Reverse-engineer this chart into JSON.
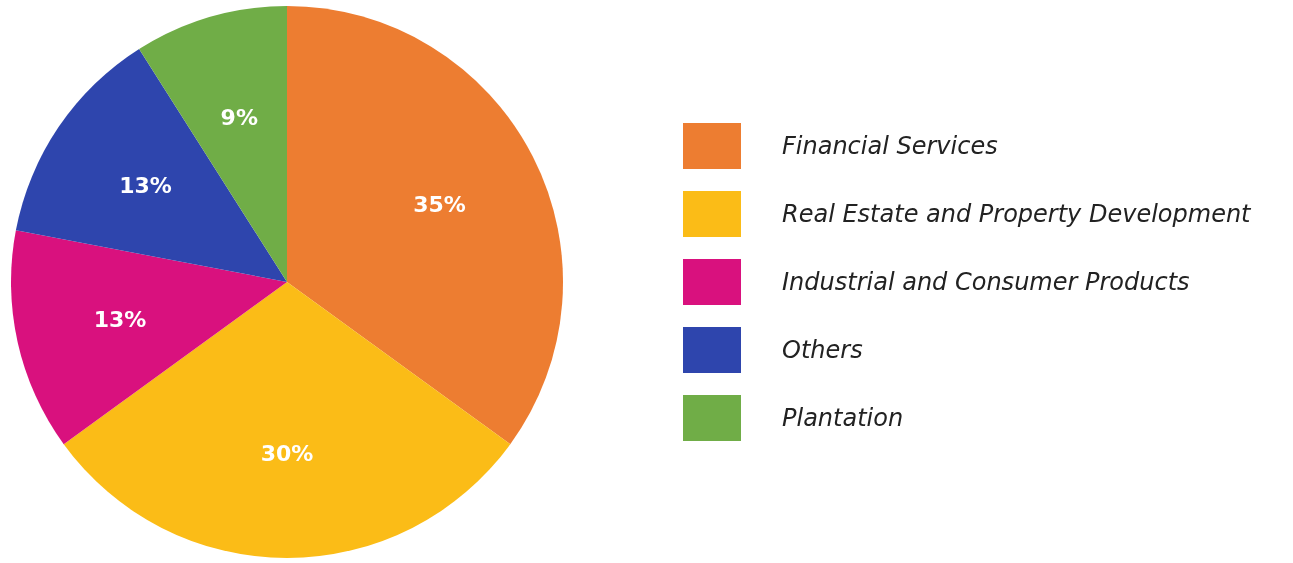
{
  "chart_data": {
    "type": "pie",
    "categories": [
      "Financial Services",
      "Real Estate and Property Development",
      "Industrial and Consumer Products",
      "Others",
      "Plantation"
    ],
    "values": [
      35,
      30,
      13,
      13,
      9
    ],
    "colors": [
      "#ed7d31",
      "#fbbc17",
      "#d9117e",
      "#2e45ad",
      "#70ad47"
    ],
    "value_labels": [
      "35%",
      "30%",
      "13%",
      "13%",
      "9%"
    ],
    "legend": "right"
  }
}
